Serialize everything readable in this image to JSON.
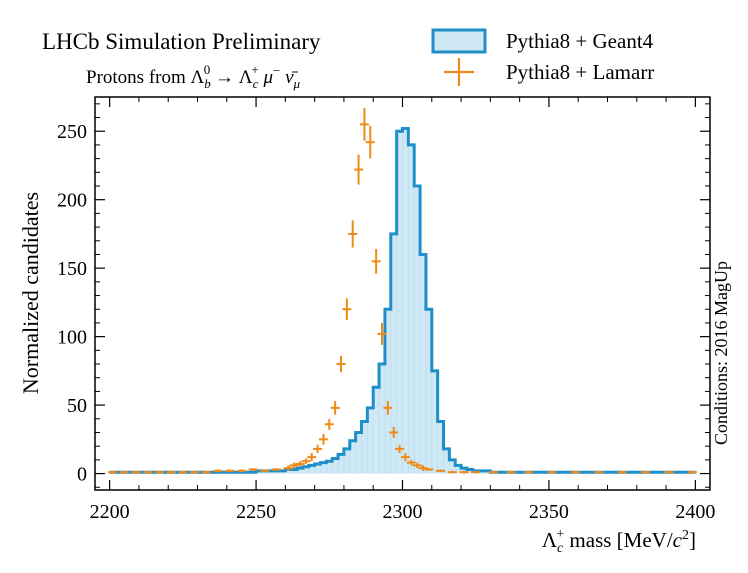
{
  "chart_data": {
    "type": "histogram",
    "title": "LHCb Simulation Preliminary",
    "subtitle_parts": {
      "prefix": "Protons from ",
      "lb_sym": "Λ",
      "lb_sub": "b",
      "lb_sup": "0",
      "arrow": " → ",
      "lc_sym": "Λ",
      "lc_sub": "c",
      "lc_sup": "+",
      "mu": " μ",
      "mu_sup": "−",
      "nu": " ν̄",
      "nu_sub": "μ"
    },
    "xlabel_parts": {
      "sym": "Λ",
      "sub": "c",
      "sup": "+",
      "rest": " mass [MeV/",
      "c": "c",
      "c_sup": "2",
      "close": "]"
    },
    "ylabel": "Normalized candidates",
    "side_note": "Conditions: 2016 MagUp",
    "xlim": [
      2195,
      2405
    ],
    "ylim": [
      -12,
      275
    ],
    "x_ticks": [
      2200,
      2250,
      2300,
      2350,
      2400
    ],
    "y_ticks": [
      0,
      50,
      100,
      150,
      200,
      250
    ],
    "legend_placement": "top-right",
    "series": [
      {
        "name": "Pythia8 + Geant4",
        "style": "step-filled",
        "color": "#1f8fc9",
        "fill": "#cfe8f5",
        "bin_edges_start": 2200,
        "bin_width": 2,
        "values": [
          1,
          1,
          1,
          1,
          1,
          1,
          1,
          1,
          1,
          1,
          1,
          1,
          1,
          1,
          1,
          1,
          1,
          1,
          1,
          1,
          1,
          1,
          1,
          1,
          1,
          2,
          2,
          2,
          2,
          2,
          3,
          3,
          4,
          5,
          6,
          7,
          8,
          9,
          11,
          14,
          18,
          24,
          30,
          38,
          48,
          63,
          80,
          120,
          175,
          250,
          252,
          240,
          210,
          160,
          120,
          75,
          38,
          18,
          10,
          6,
          4,
          3,
          2,
          2,
          2,
          1,
          1,
          1,
          1,
          1,
          1,
          1,
          1,
          1,
          1,
          1,
          1,
          1,
          1,
          1,
          1,
          1,
          1,
          1,
          1,
          1,
          1,
          1,
          1,
          1,
          1,
          1,
          1,
          1,
          1,
          1,
          1,
          1,
          1,
          1
        ]
      },
      {
        "name": "Pythia8 + Lamarr",
        "style": "errorbar",
        "color": "#f08a17",
        "x": [
          2201,
          2205,
          2209,
          2213,
          2217,
          2221,
          2225,
          2229,
          2233,
          2237,
          2241,
          2245,
          2249,
          2253,
          2257,
          2261,
          2263,
          2265,
          2267,
          2269,
          2271,
          2273,
          2275,
          2277,
          2279,
          2281,
          2283,
          2285,
          2287,
          2289,
          2291,
          2293,
          2295,
          2297,
          2299,
          2301,
          2303,
          2305,
          2307,
          2309,
          2313,
          2317,
          2321,
          2325,
          2331,
          2337,
          2343,
          2351,
          2359,
          2367,
          2375,
          2383,
          2391,
          2399
        ],
        "y": [
          1,
          1,
          1,
          1,
          1,
          1,
          1,
          1,
          1,
          2,
          2,
          2,
          3,
          2,
          3,
          4,
          6,
          7,
          9,
          12,
          18,
          25,
          36,
          48,
          80,
          120,
          175,
          222,
          255,
          242,
          155,
          102,
          48,
          30,
          18,
          12,
          8,
          6,
          4,
          3,
          2,
          1,
          1,
          1,
          1,
          1,
          1,
          1,
          1,
          1,
          1,
          1,
          1,
          1
        ],
        "yerr": [
          1,
          1,
          1,
          1,
          1,
          1,
          1,
          1,
          1,
          1,
          1,
          1,
          1,
          1,
          1,
          2,
          2,
          2,
          2,
          3,
          3,
          4,
          4,
          5,
          6,
          8,
          10,
          11,
          12,
          12,
          9,
          8,
          5,
          4,
          3,
          3,
          2,
          2,
          2,
          1,
          1,
          1,
          1,
          1,
          1,
          1,
          1,
          1,
          1,
          1,
          1,
          1,
          1,
          1
        ]
      }
    ]
  }
}
